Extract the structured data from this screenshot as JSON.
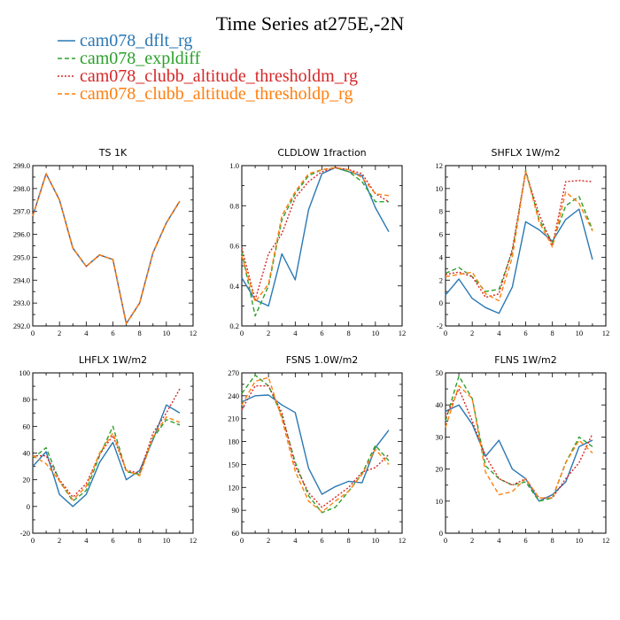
{
  "page": {
    "title": "Time Series at275E,-2N"
  },
  "legend": [
    {
      "label": "cam078_dflt_rg",
      "color": "#2a78b4",
      "dash": "solid"
    },
    {
      "label": "cam078_expldiff",
      "color": "#2ca02c",
      "dash": "dashed"
    },
    {
      "label": "cam078_clubb_altitude_thresholdm_rg",
      "color": "#d62728",
      "dash": "dotted"
    },
    {
      "label": "cam078_clubb_altitude_thresholdp_rg",
      "color": "#ff7f0e",
      "dash": "dashed"
    }
  ],
  "chart_data": [
    {
      "type": "line",
      "title": "TS   1K",
      "x": [
        0,
        1,
        2,
        3,
        4,
        5,
        6,
        7,
        8,
        9,
        10,
        11
      ],
      "xlim": [
        0,
        12
      ],
      "xticks": [
        "0",
        "2",
        "4",
        "6",
        "8",
        "10",
        "12"
      ],
      "ylim": [
        292.0,
        299.0
      ],
      "yticks": [
        "292.0",
        "293.0",
        "294.0",
        "295.0",
        "296.0",
        "297.0",
        "298.0",
        "299.0"
      ],
      "series": [
        {
          "values": [
            296.8,
            298.65,
            297.5,
            295.4,
            294.6,
            295.1,
            294.9,
            292.1,
            293.0,
            295.2,
            296.5,
            297.45
          ]
        },
        {
          "values": [
            296.8,
            298.65,
            297.5,
            295.4,
            294.6,
            295.1,
            294.9,
            292.1,
            293.0,
            295.2,
            296.5,
            297.45
          ]
        },
        {
          "values": [
            296.8,
            298.65,
            297.5,
            295.4,
            294.6,
            295.1,
            294.9,
            292.1,
            293.0,
            295.2,
            296.5,
            297.45
          ]
        },
        {
          "values": [
            296.8,
            298.65,
            297.5,
            295.4,
            294.6,
            295.1,
            294.9,
            292.1,
            293.0,
            295.2,
            296.5,
            297.45
          ]
        }
      ]
    },
    {
      "type": "line",
      "title": "CLDLOW   1fraction",
      "x": [
        0,
        1,
        2,
        3,
        4,
        5,
        6,
        7,
        8,
        9,
        10,
        11
      ],
      "xlim": [
        0,
        12
      ],
      "xticks": [
        "0",
        "2",
        "4",
        "6",
        "8",
        "10",
        "12"
      ],
      "ylim": [
        0.2,
        1.0
      ],
      "yticks": [
        "0.2",
        "0.4",
        "0.6",
        "0.8",
        "1.0"
      ],
      "series": [
        {
          "values": [
            0.44,
            0.33,
            0.3,
            0.56,
            0.43,
            0.78,
            0.96,
            0.99,
            0.97,
            0.95,
            0.79,
            0.67
          ]
        },
        {
          "values": [
            0.57,
            0.25,
            0.4,
            0.73,
            0.86,
            0.95,
            0.98,
            0.99,
            0.97,
            0.92,
            0.82,
            0.82
          ]
        },
        {
          "values": [
            0.59,
            0.33,
            0.56,
            0.66,
            0.84,
            0.92,
            0.97,
            0.99,
            0.98,
            0.96,
            0.86,
            0.82
          ]
        },
        {
          "values": [
            0.55,
            0.32,
            0.41,
            0.75,
            0.87,
            0.96,
            0.98,
            0.99,
            0.98,
            0.94,
            0.86,
            0.85
          ]
        }
      ]
    },
    {
      "type": "line",
      "title": "SHFLX   1W/m2",
      "x": [
        0,
        1,
        2,
        3,
        4,
        5,
        6,
        7,
        8,
        9,
        10,
        11
      ],
      "xlim": [
        0,
        12
      ],
      "xticks": [
        "0",
        "2",
        "4",
        "6",
        "8",
        "10",
        "12"
      ],
      "ylim": [
        -2,
        12
      ],
      "yticks": [
        "-2",
        "0",
        "2",
        "4",
        "6",
        "8",
        "10",
        "12"
      ],
      "series": [
        {
          "values": [
            0.7,
            2.1,
            0.4,
            -0.4,
            -0.9,
            1.4,
            7.1,
            6.4,
            5.4,
            7.3,
            8.2,
            3.8
          ]
        },
        {
          "values": [
            2.6,
            3.1,
            2.3,
            1.0,
            1.2,
            4.5,
            11.6,
            7.3,
            5.3,
            8.5,
            9.3,
            6.4
          ]
        },
        {
          "values": [
            2.5,
            2.7,
            2.3,
            0.5,
            0.8,
            4.7,
            11.4,
            7.8,
            5.0,
            10.6,
            10.7,
            10.6
          ]
        },
        {
          "values": [
            2.3,
            2.5,
            2.7,
            0.8,
            0.2,
            4.0,
            11.5,
            7.1,
            4.9,
            9.7,
            8.7,
            6.3
          ]
        }
      ]
    },
    {
      "type": "line",
      "title": "LHFLX   1W/m2",
      "x": [
        0,
        1,
        2,
        3,
        4,
        5,
        6,
        7,
        8,
        9,
        10,
        11
      ],
      "xlim": [
        0,
        12
      ],
      "xticks": [
        "0",
        "2",
        "4",
        "6",
        "8",
        "10",
        "12"
      ],
      "ylim": [
        -20,
        100
      ],
      "yticks": [
        "-20",
        "0",
        "20",
        "40",
        "60",
        "80",
        "100"
      ],
      "series": [
        {
          "values": [
            30,
            41,
            9,
            0,
            9,
            33,
            48,
            20,
            27,
            50,
            76,
            70
          ]
        },
        {
          "values": [
            36,
            44,
            19,
            4,
            12,
            38,
            60,
            26,
            24,
            51,
            65,
            61
          ]
        },
        {
          "values": [
            38,
            38,
            20,
            7,
            17,
            39,
            53,
            27,
            25,
            55,
            70,
            88
          ]
        },
        {
          "values": [
            38,
            32,
            19,
            5,
            15,
            40,
            55,
            27,
            23,
            52,
            67,
            63
          ]
        }
      ]
    },
    {
      "type": "line",
      "title": "FSNS   1.0W/m2",
      "x": [
        0,
        1,
        2,
        3,
        4,
        5,
        6,
        7,
        8,
        9,
        10,
        11
      ],
      "xlim": [
        0,
        12
      ],
      "xticks": [
        "0",
        "2",
        "4",
        "6",
        "8",
        "10",
        "12"
      ],
      "ylim": [
        60,
        270
      ],
      "yticks": [
        "60",
        "90",
        "120",
        "150",
        "180",
        "210",
        "240",
        "270"
      ],
      "series": [
        {
          "values": [
            232,
            240,
            241,
            228,
            218,
            145,
            111,
            121,
            128,
            126,
            172,
            195
          ]
        },
        {
          "values": [
            243,
            267,
            253,
            214,
            153,
            109,
            87,
            94,
            115,
            138,
            175,
            155
          ]
        },
        {
          "values": [
            222,
            253,
            253,
            218,
            148,
            113,
            94,
            107,
            120,
            140,
            146,
            163
          ]
        },
        {
          "values": [
            228,
            259,
            264,
            210,
            141,
            102,
            88,
            102,
            115,
            137,
            170,
            150
          ]
        }
      ]
    },
    {
      "type": "line",
      "title": "FLNS   1W/m2",
      "x": [
        0,
        1,
        2,
        3,
        4,
        5,
        6,
        7,
        8,
        9,
        10,
        11
      ],
      "xlim": [
        0,
        12
      ],
      "xticks": [
        "0",
        "2",
        "4",
        "6",
        "8",
        "10",
        "12"
      ],
      "ylim": [
        0,
        50
      ],
      "yticks": [
        "0",
        "10",
        "20",
        "30",
        "40",
        "50"
      ],
      "series": [
        {
          "values": [
            38,
            40,
            34,
            24,
            29,
            20,
            17,
            10,
            12,
            16,
            27,
            29
          ]
        },
        {
          "values": [
            35,
            49,
            42,
            21,
            17,
            15,
            16,
            10,
            11,
            22,
            30,
            27
          ]
        },
        {
          "values": [
            36,
            45,
            35,
            24,
            17,
            15,
            17,
            11,
            11,
            17,
            22,
            31
          ]
        },
        {
          "values": [
            33,
            46,
            42,
            19,
            12,
            13,
            17,
            11,
            11,
            22,
            29,
            25
          ]
        }
      ]
    }
  ]
}
